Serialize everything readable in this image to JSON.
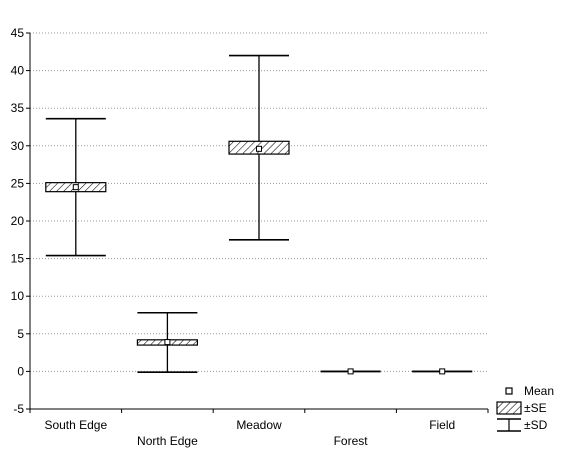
{
  "chart_data": {
    "type": "box",
    "title": "",
    "xlabel": "",
    "ylabel": "",
    "ylim": [
      -5,
      45
    ],
    "yticks": [
      -5,
      0,
      5,
      10,
      15,
      20,
      25,
      30,
      35,
      40,
      45
    ],
    "grid": true,
    "categories": [
      "South Edge",
      "North Edge",
      "Meadow",
      "Forest",
      "Field"
    ],
    "series": [
      {
        "category": "South Edge",
        "mean": 24.5,
        "se_low": 23.9,
        "se_high": 25.1,
        "sd_low": 15.4,
        "sd_high": 33.6
      },
      {
        "category": "North Edge",
        "mean": 3.9,
        "se_low": 3.5,
        "se_high": 4.2,
        "sd_low": -0.1,
        "sd_high": 7.8
      },
      {
        "category": "Meadow",
        "mean": 29.6,
        "se_low": 28.9,
        "se_high": 30.6,
        "sd_low": 17.5,
        "sd_high": 42.0
      },
      {
        "category": "Forest",
        "mean": 0.0,
        "se_low": 0.0,
        "se_high": 0.0,
        "sd_low": 0.0,
        "sd_high": 0.0
      },
      {
        "category": "Field",
        "mean": 0.0,
        "se_low": 0.0,
        "se_high": 0.0,
        "sd_low": 0.0,
        "sd_high": 0.0
      }
    ],
    "legend": {
      "position": "bottom-right",
      "items": [
        {
          "key": "mean",
          "label": "Mean"
        },
        {
          "key": "se",
          "label": "±SE"
        },
        {
          "key": "sd",
          "label": "±SD"
        }
      ]
    }
  }
}
